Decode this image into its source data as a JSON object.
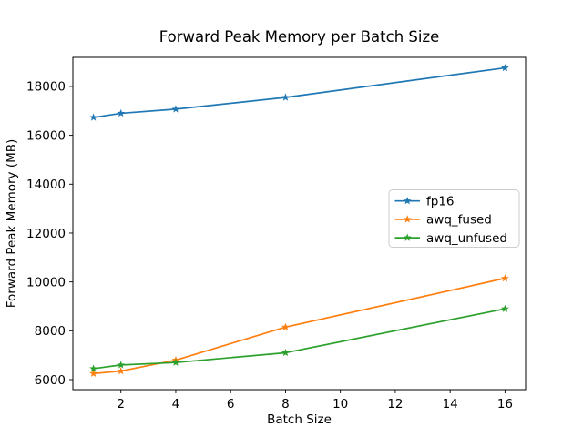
{
  "chart_data": {
    "type": "line",
    "title": "Forward Peak Memory per Batch Size",
    "xlabel": "Batch Size",
    "ylabel": "Forward Peak Memory (MB)",
    "x": [
      1,
      2,
      4,
      8,
      16
    ],
    "series": [
      {
        "name": "fp16",
        "color": "#1f77b4",
        "marker": "star",
        "values": [
          16730,
          16900,
          17070,
          17550,
          18760
        ]
      },
      {
        "name": "awq_fused",
        "color": "#ff7f0e",
        "marker": "star",
        "values": [
          6250,
          6350,
          6800,
          8150,
          10150
        ]
      },
      {
        "name": "awq_unfused",
        "color": "#2ca02c",
        "marker": "star",
        "values": [
          6450,
          6600,
          6700,
          7100,
          8900
        ]
      }
    ],
    "xticks": [
      2,
      4,
      6,
      8,
      10,
      12,
      14,
      16
    ],
    "yticks": [
      6000,
      8000,
      10000,
      12000,
      14000,
      16000,
      18000
    ],
    "xlim": [
      0.25,
      16.75
    ],
    "ylim": [
      5590,
      19190
    ],
    "grid": false,
    "legend_loc": "center right",
    "background": "#ffffff",
    "spine_color": "#000000",
    "legend_border_color": "#cccccc"
  }
}
